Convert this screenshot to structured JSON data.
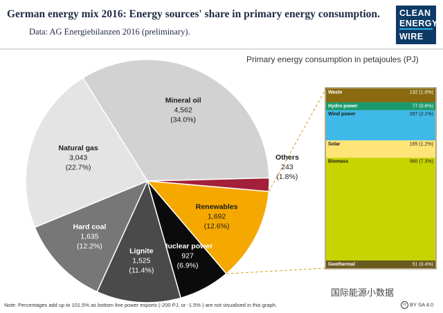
{
  "header": {
    "title": "German energy mix 2016: Energy sources' share in primary energy consumption.",
    "subtitle": "Data: AG Energiebilanzen 2016 (preliminary).",
    "logo_lines": [
      "CLEAN",
      "ENERGY",
      "WIRE"
    ]
  },
  "footer": {
    "note": "Note: Percentages add up to 101.5% as bottom line power exports (-200 PJ, or -1.5% ) are not visualised in this graph.",
    "license": "BY SA 4.0",
    "license_icon": "cc-icon",
    "watermark": "国际能源小数据"
  },
  "chart_data": [
    {
      "type": "pie",
      "title": "",
      "unit_label": "Primary energy consumption in petajoules (PJ)",
      "slices": [
        {
          "name": "Mineral oil",
          "value": 4562,
          "value_label": "4,562",
          "pct_label": "(34.0%)",
          "color": "#d2d2d2"
        },
        {
          "name": "Others",
          "value": 243,
          "value_label": "243",
          "pct_label": "(1.8%)",
          "color": "#a3203a"
        },
        {
          "name": "Renewables",
          "value": 1692,
          "value_label": "1,692",
          "pct_label": "(12.6%)",
          "color": "#f5a800"
        },
        {
          "name": "Nuclear power",
          "value": 927,
          "value_label": "927",
          "pct_label": "(6.9%)",
          "color": "#0b0b0b"
        },
        {
          "name": "Lignite",
          "value": 1525,
          "value_label": "1,525",
          "pct_label": "(11.4%)",
          "color": "#4a4a4a"
        },
        {
          "name": "Hard coal",
          "value": 1635,
          "value_label": "1,635",
          "pct_label": "(12.2%)",
          "color": "#777777"
        },
        {
          "name": "Natural gas",
          "value": 3043,
          "value_label": "3,043",
          "pct_label": "(22.7%)",
          "color": "#e4e4e4"
        }
      ]
    },
    {
      "type": "bar",
      "subtype": "stacked",
      "title": "",
      "segments": [
        {
          "name": "Waste",
          "value": 132,
          "label": "132 (1.0%)",
          "color": "#8a6a10"
        },
        {
          "name": "Hydro power",
          "value": 77,
          "label": "77 (0.6%)",
          "color": "#1a9a6e"
        },
        {
          "name": "Wind power",
          "value": 287,
          "label": "287 (2.1%)",
          "color": "#3fb9e8"
        },
        {
          "name": "Solar",
          "value": 165,
          "label": "165 (1.2%)",
          "color": "#ffe477"
        },
        {
          "name": "Biomass",
          "value": 980,
          "label": "980 (7.3%)",
          "color": "#c8d400"
        },
        {
          "name": "Geothermal",
          "value": 51,
          "label": "51 (0.4%)",
          "color": "#6b5a1e"
        }
      ]
    }
  ]
}
